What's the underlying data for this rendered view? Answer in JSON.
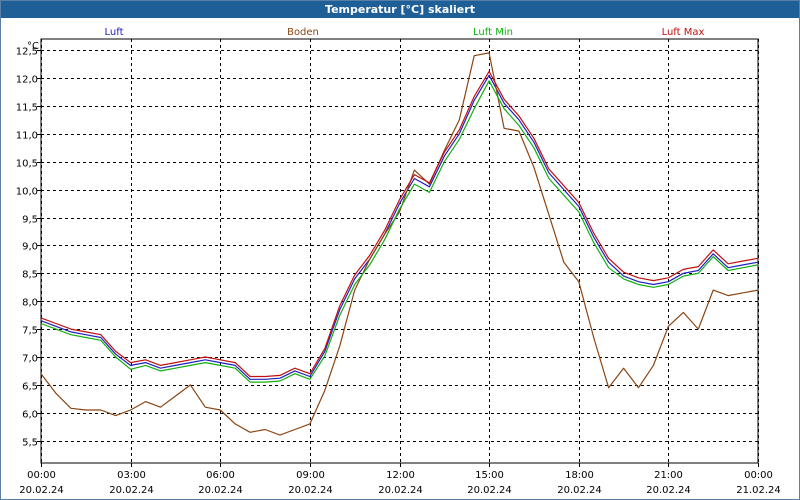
{
  "chart_data": {
    "type": "line",
    "title": "Temperatur [°C] skaliert",
    "ylabel": "°C",
    "ylim": [
      5.1,
      12.7
    ],
    "yticks": [
      "5,5",
      "6,0",
      "6,5",
      "7,0",
      "7,5",
      "8,0",
      "8,5",
      "9,0",
      "9,5",
      "10,0",
      "10,5",
      "11,0",
      "11,5",
      "12,0",
      "12,5"
    ],
    "xticks": [
      {
        "time": "00:00",
        "date": "20.02.24"
      },
      {
        "time": "03:00",
        "date": "20.02.24"
      },
      {
        "time": "06:00",
        "date": "20.02.24"
      },
      {
        "time": "09:00",
        "date": "20.02.24"
      },
      {
        "time": "12:00",
        "date": "20.02.24"
      },
      {
        "time": "15:00",
        "date": "20.02.24"
      },
      {
        "time": "18:00",
        "date": "20.02.24"
      },
      {
        "time": "21:00",
        "date": "20.02.24"
      },
      {
        "time": "00:00",
        "date": "21.02.24"
      }
    ],
    "xlim_hours": [
      0,
      24
    ],
    "grid": true,
    "legend_position": "top",
    "series": [
      {
        "name": "Luft",
        "color": "#2020c0",
        "x": [
          0,
          0.5,
          1,
          1.5,
          2,
          2.5,
          3,
          3.5,
          4,
          4.5,
          5,
          5.5,
          6,
          6.5,
          7,
          7.5,
          8,
          8.5,
          9,
          9.5,
          10,
          10.5,
          11,
          11.5,
          12,
          12.5,
          13,
          13.5,
          14,
          14.5,
          15,
          15.5,
          16,
          16.5,
          17,
          17.5,
          18,
          18.5,
          19,
          19.5,
          20,
          20.5,
          21,
          21.5,
          22,
          22.5,
          23,
          23.5,
          24
        ],
        "y": [
          7.65,
          7.55,
          7.45,
          7.4,
          7.35,
          7.05,
          6.85,
          6.9,
          6.8,
          6.85,
          6.9,
          6.95,
          6.9,
          6.85,
          6.6,
          6.6,
          6.62,
          6.75,
          6.65,
          7.1,
          7.85,
          8.4,
          8.75,
          9.2,
          9.75,
          10.2,
          10.05,
          10.6,
          11.0,
          11.6,
          12.05,
          11.55,
          11.25,
          10.85,
          10.3,
          10.0,
          9.7,
          9.15,
          8.7,
          8.45,
          8.35,
          8.3,
          8.35,
          8.5,
          8.55,
          8.85,
          8.6,
          8.65,
          8.7
        ]
      },
      {
        "name": "Boden",
        "color": "#8b4513",
        "x": [
          0,
          0.5,
          1,
          1.5,
          2,
          2.5,
          3,
          3.5,
          4,
          4.5,
          5,
          5.5,
          6,
          6.5,
          7,
          7.5,
          8,
          8.5,
          9,
          9.5,
          10,
          10.5,
          11,
          11.5,
          12,
          12.5,
          13,
          13.5,
          14,
          14.5,
          15,
          15.5,
          16,
          16.5,
          17,
          17.5,
          18,
          18.5,
          19,
          19.5,
          20,
          20.5,
          21,
          21.5,
          22,
          22.5,
          23,
          23.5,
          24
        ],
        "y": [
          6.7,
          6.35,
          6.08,
          6.05,
          6.05,
          5.95,
          6.05,
          6.2,
          6.1,
          6.3,
          6.5,
          6.1,
          6.05,
          5.8,
          5.65,
          5.7,
          5.6,
          5.7,
          5.8,
          6.4,
          7.2,
          8.2,
          8.75,
          9.2,
          9.6,
          10.35,
          10.1,
          10.7,
          11.25,
          12.4,
          12.45,
          11.1,
          11.05,
          10.4,
          9.55,
          8.7,
          8.35,
          7.35,
          6.45,
          6.8,
          6.45,
          6.85,
          7.55,
          7.8,
          7.5,
          8.2,
          8.1,
          8.15,
          8.2
        ]
      },
      {
        "name": "Luft Min",
        "color": "#10b010",
        "x": [
          0,
          0.5,
          1,
          1.5,
          2,
          2.5,
          3,
          3.5,
          4,
          4.5,
          5,
          5.5,
          6,
          6.5,
          7,
          7.5,
          8,
          8.5,
          9,
          9.5,
          10,
          10.5,
          11,
          11.5,
          12,
          12.5,
          13,
          13.5,
          14,
          14.5,
          15,
          15.5,
          16,
          16.5,
          17,
          17.5,
          18,
          18.5,
          19,
          19.5,
          20,
          20.5,
          21,
          21.5,
          22,
          22.5,
          23,
          23.5,
          24
        ],
        "y": [
          7.6,
          7.5,
          7.4,
          7.35,
          7.3,
          7.0,
          6.78,
          6.85,
          6.75,
          6.8,
          6.85,
          6.9,
          6.85,
          6.8,
          6.55,
          6.55,
          6.57,
          6.7,
          6.6,
          7.02,
          7.75,
          8.3,
          8.65,
          9.1,
          9.65,
          10.1,
          9.95,
          10.5,
          10.9,
          11.45,
          11.95,
          11.45,
          11.15,
          10.75,
          10.2,
          9.9,
          9.6,
          9.05,
          8.6,
          8.4,
          8.3,
          8.25,
          8.3,
          8.45,
          8.5,
          8.8,
          8.55,
          8.6,
          8.65
        ]
      },
      {
        "name": "Luft Max",
        "color": "#c01010",
        "x": [
          0,
          0.5,
          1,
          1.5,
          2,
          2.5,
          3,
          3.5,
          4,
          4.5,
          5,
          5.5,
          6,
          6.5,
          7,
          7.5,
          8,
          8.5,
          9,
          9.5,
          10,
          10.5,
          11,
          11.5,
          12,
          12.5,
          13,
          13.5,
          14,
          14.5,
          15,
          15.5,
          16,
          16.5,
          17,
          17.5,
          18,
          18.5,
          19,
          19.5,
          20,
          20.5,
          21,
          21.5,
          22,
          22.5,
          23,
          23.5,
          24
        ],
        "y": [
          7.7,
          7.6,
          7.5,
          7.45,
          7.4,
          7.1,
          6.9,
          6.95,
          6.85,
          6.9,
          6.95,
          7.0,
          6.95,
          6.9,
          6.65,
          6.65,
          6.67,
          6.8,
          6.7,
          7.15,
          7.92,
          8.47,
          8.82,
          9.27,
          9.82,
          10.27,
          10.12,
          10.67,
          11.07,
          11.67,
          12.12,
          11.62,
          11.32,
          10.92,
          10.37,
          10.07,
          9.77,
          9.22,
          8.77,
          8.52,
          8.42,
          8.37,
          8.42,
          8.57,
          8.62,
          8.92,
          8.67,
          8.72,
          8.77
        ]
      }
    ]
  }
}
